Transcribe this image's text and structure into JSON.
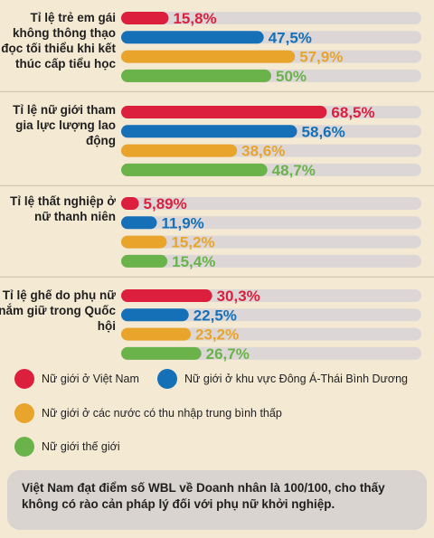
{
  "colors": {
    "vietnam": "#dc1f3c",
    "east_asia_pacific": "#1570b8",
    "lower_middle_income": "#e8a42b",
    "world": "#6ab34a",
    "track": "#dcd7d6"
  },
  "chart_data": {
    "type": "bar",
    "orientation": "horizontal",
    "xlim": [
      0,
      100
    ],
    "groups": [
      {
        "label": "Tỉ lệ trẻ em gái không thông thạo đọc tối thiểu khi kết thúc cấp tiểu học",
        "values": [
          15.8,
          47.5,
          57.9,
          50
        ],
        "labels": [
          "15,8%",
          "47,5%",
          "57,9%",
          "50%"
        ]
      },
      {
        "label": "Tỉ lệ nữ giới tham gia lực lượng lao động",
        "values": [
          68.5,
          58.6,
          38.6,
          48.7
        ],
        "labels": [
          "68,5%",
          "58,6%",
          "38,6%",
          "48,7%"
        ]
      },
      {
        "label": "Tỉ lệ thất nghiệp ở nữ thanh niên",
        "values": [
          5.89,
          11.9,
          15.2,
          15.4
        ],
        "labels": [
          "5,89%",
          "11,9%",
          "15,2%",
          "15,4%"
        ]
      },
      {
        "label": "Tỉ lệ ghế do phụ nữ nắm giữ trong Quốc hội",
        "values": [
          30.3,
          22.5,
          23.2,
          26.7
        ],
        "labels": [
          "30,3%",
          "22,5%",
          "23,2%",
          "26,7%"
        ]
      }
    ],
    "series": [
      {
        "name": "Nữ giới ở Việt Nam"
      },
      {
        "name": "Nữ giới ở khu vực Đông Á-Thái Bình Dương"
      },
      {
        "name": "Nữ giới ở các nước có thu nhập trung bình thấp"
      },
      {
        "name": "Nữ giới thế giới"
      }
    ]
  },
  "note": "Việt Nam đạt điểm số WBL về Doanh nhân là 100/100, cho thấy không có rào cản pháp lý đối với phụ nữ khởi nghiệp."
}
